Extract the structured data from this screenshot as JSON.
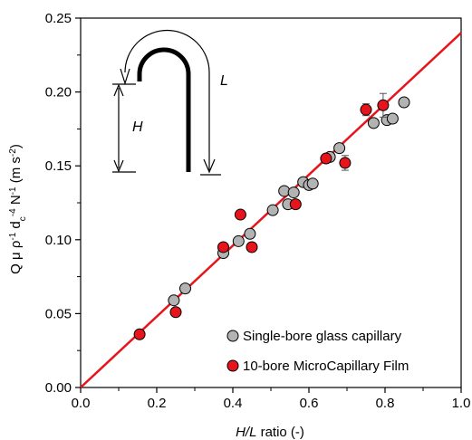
{
  "chart_data": {
    "type": "scatter",
    "xlabel": {
      "italic": "H/L",
      "rest": " ratio (-)"
    },
    "ylabel": {
      "parts": [
        {
          "t": "Q μ ρ",
          "sup": false
        },
        {
          "t": "-1",
          "sup": true
        },
        {
          "t": " d",
          "sup": false
        },
        {
          "t": "c",
          "sub": true
        },
        {
          "t": "-4",
          "sup": true
        },
        {
          "t": " N",
          "sup": false
        },
        {
          "t": "-1",
          "sup": true
        },
        {
          "t": " (m s",
          "sup": false
        },
        {
          "t": "-2",
          "sup": true
        },
        {
          "t": ")",
          "sup": false
        }
      ]
    },
    "xlim": [
      0.0,
      1.0
    ],
    "ylim": [
      0.0,
      0.25
    ],
    "x_ticks": [
      "0.0",
      "0.2",
      "0.4",
      "0.6",
      "0.8",
      "1.0"
    ],
    "y_ticks": [
      "0.00",
      "0.05",
      "0.10",
      "0.15",
      "0.20",
      "0.25"
    ],
    "fit_line": {
      "color": "#e8141b",
      "x": [
        0.0,
        1.0
      ],
      "y": [
        0.0,
        0.24
      ]
    },
    "series": [
      {
        "name": "Single-bore glass capillary",
        "color": "#b3b3b3",
        "points": [
          [
            0.245,
            0.059
          ],
          [
            0.275,
            0.067
          ],
          [
            0.375,
            0.091
          ],
          [
            0.415,
            0.099
          ],
          [
            0.445,
            0.104
          ],
          [
            0.505,
            0.12
          ],
          [
            0.535,
            0.133
          ],
          [
            0.545,
            0.124
          ],
          [
            0.56,
            0.132
          ],
          [
            0.585,
            0.139
          ],
          [
            0.6,
            0.137
          ],
          [
            0.61,
            0.138
          ],
          [
            0.655,
            0.156
          ],
          [
            0.68,
            0.162
          ],
          [
            0.77,
            0.179
          ],
          [
            0.805,
            0.181
          ],
          [
            0.82,
            0.182
          ],
          [
            0.85,
            0.193
          ]
        ]
      },
      {
        "name": "10-bore MicroCapillary Film",
        "color": "#e8141b",
        "points": [
          [
            0.155,
            0.036,
            0.0
          ],
          [
            0.25,
            0.051,
            0.0
          ],
          [
            0.375,
            0.095,
            0.0
          ],
          [
            0.42,
            0.117,
            0.002
          ],
          [
            0.45,
            0.095,
            0.003
          ],
          [
            0.565,
            0.124,
            0.0
          ],
          [
            0.645,
            0.155,
            0.0
          ],
          [
            0.695,
            0.152,
            0.005
          ],
          [
            0.75,
            0.188,
            0.004
          ],
          [
            0.795,
            0.191,
            0.008
          ]
        ]
      }
    ],
    "legend": {
      "position": "bottom-right"
    },
    "inset": {
      "label_h": "H",
      "label_l": "L"
    }
  }
}
